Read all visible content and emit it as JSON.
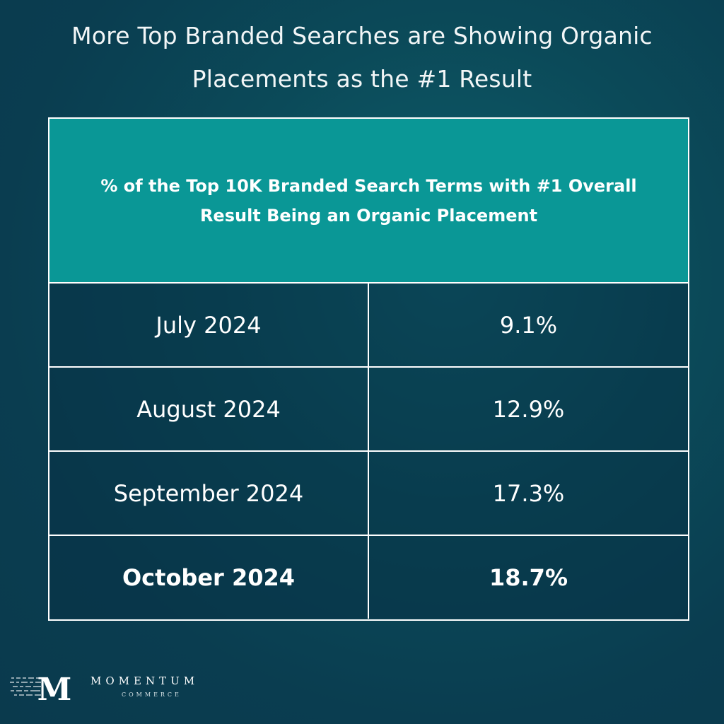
{
  "title": {
    "line1": "More Top Branded Searches are Showing Organic",
    "line2": "Placements as the #1 Result"
  },
  "colors": {
    "background": "#0b4a59",
    "header": "#0a9796",
    "border": "#ffffff",
    "text": "#ffffff"
  },
  "chart_data": {
    "type": "table",
    "title": "More Top Branded Searches are Showing Organic Placements as the #1 Result",
    "header": {
      "line1": "% of the Top 10K Branded Search Terms with #1 Overall",
      "line2": "Result Being an Organic Placement"
    },
    "rows": [
      {
        "month": "July 2024",
        "value": "9.1%",
        "highlight": false
      },
      {
        "month": "August 2024",
        "value": "12.9%",
        "highlight": false
      },
      {
        "month": "September 2024",
        "value": "17.3%",
        "highlight": false
      },
      {
        "month": "October 2024",
        "value": "18.7%",
        "highlight": true
      }
    ]
  },
  "logo": {
    "mark": "M",
    "name": "MOMENTUM",
    "sub": "COMMERCE",
    "icon": "momentum-logo-icon"
  }
}
